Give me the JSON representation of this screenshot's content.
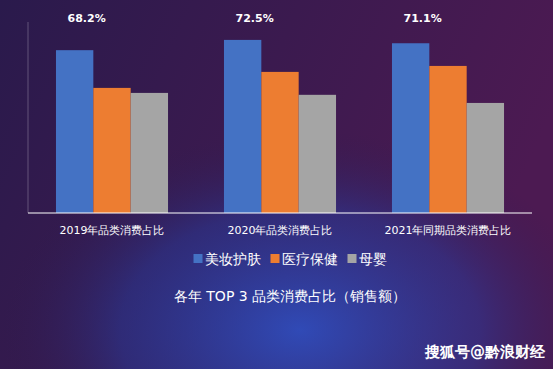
{
  "chart_data": {
    "type": "bar",
    "title": "各年 TOP 3 品类消费占比（销售额）",
    "source": "搜狐号@黔浪财经",
    "categories": [
      "2019年品类消费占比",
      "2020年品类消费占比",
      "2021年同期品类消费占比"
    ],
    "series": [
      {
        "name": "美妆护肤",
        "color": "#4472c4",
        "values": [
          68.2,
          72.5,
          71.1
        ],
        "value_labels": [
          "68.2%",
          "72.5%",
          "71.1%"
        ],
        "data_labels": true
      },
      {
        "name": "医疗保健",
        "color": "#ed7d31",
        "values": [
          52.4,
          59.1,
          61.6
        ]
      },
      {
        "name": "母婴",
        "color": "#a5a5a5",
        "values": [
          50.3,
          49.5,
          46.1
        ]
      }
    ],
    "ylim": [
      0,
      80
    ],
    "tick_labels": "x",
    "grid": false,
    "legend": "bottom"
  }
}
